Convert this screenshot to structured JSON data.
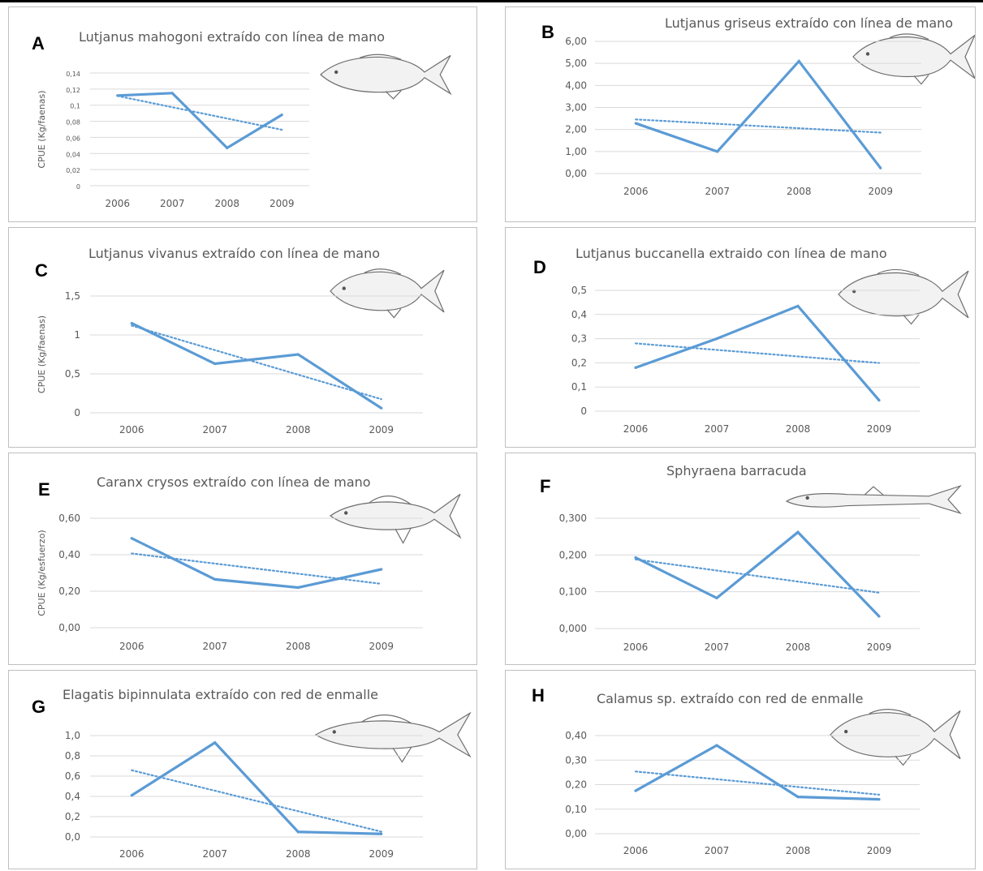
{
  "colors": {
    "series": "#5b9bd5",
    "grid": "#d9d9d9",
    "text": "#595959",
    "border": "#bfbfbf"
  },
  "chart_data": [
    {
      "panel": "A",
      "title": "Lutjanus mahogoni extraído con línea de mano",
      "type": "line",
      "x": [
        "2006",
        "2007",
        "2008",
        "2009"
      ],
      "values": [
        0.112,
        0.115,
        0.047,
        0.088
      ],
      "trendline": "linear",
      "ylabel": "CPUE (Kg/faenas)",
      "ylim": [
        0,
        0.14
      ],
      "yticks": [
        "0",
        "0,02",
        "0,04",
        "0,06",
        "0,08",
        "0,1",
        "0,12",
        "0,14"
      ],
      "fish_icon": "snapper-icon"
    },
    {
      "panel": "B",
      "title": "Lutjanus griseus extraído con línea de mano",
      "type": "line",
      "x": [
        "2006",
        "2007",
        "2008",
        "2009"
      ],
      "values": [
        2.28,
        1.0,
        5.1,
        0.25
      ],
      "trendline": "linear",
      "ylabel": "",
      "ylim": [
        0,
        6
      ],
      "yticks": [
        "0,00",
        "1,00",
        "2,00",
        "3,00",
        "4,00",
        "5,00",
        "6,00"
      ],
      "fish_icon": "snapper-icon"
    },
    {
      "panel": "C",
      "title": "Lutjanus vivanus extraído con línea de mano",
      "type": "line",
      "x": [
        "2006",
        "2007",
        "2008",
        "2009"
      ],
      "values": [
        1.15,
        0.63,
        0.75,
        0.06
      ],
      "trendline": "linear",
      "ylabel": "CPUE (Kg/faenas)",
      "ylim": [
        0,
        1.5
      ],
      "yticks": [
        "0",
        "0,5",
        "1",
        "1,5"
      ],
      "fish_icon": "snapper-icon"
    },
    {
      "panel": "D",
      "title": "Lutjanus buccanella extraido con línea de mano",
      "type": "line",
      "x": [
        "2006",
        "2007",
        "2008",
        "2009"
      ],
      "values": [
        0.18,
        0.3,
        0.435,
        0.045
      ],
      "trendline": "linear",
      "ylabel": "",
      "ylim": [
        0,
        0.5
      ],
      "yticks": [
        "0",
        "0,1",
        "0,2",
        "0,3",
        "0,4",
        "0,5"
      ],
      "fish_icon": "snapper-icon"
    },
    {
      "panel": "E",
      "title": "Caranx crysos extraído con línea de mano",
      "type": "line",
      "x": [
        "2006",
        "2007",
        "2008",
        "2009"
      ],
      "values": [
        0.49,
        0.265,
        0.22,
        0.32
      ],
      "trendline": "linear",
      "ylabel": "CPUE (Kg/esfuerzo)",
      "ylim": [
        0,
        0.6
      ],
      "yticks": [
        "0,00",
        "0,20",
        "0,40",
        "0,60"
      ],
      "fish_icon": "jack-icon"
    },
    {
      "panel": "F",
      "title": "Sphyraena barracuda",
      "type": "line",
      "x": [
        "2006",
        "2007",
        "2008",
        "2009"
      ],
      "values": [
        0.193,
        0.083,
        0.262,
        0.033
      ],
      "trendline": "linear",
      "ylabel": "",
      "ylim": [
        0,
        0.3
      ],
      "yticks": [
        "0,000",
        "0,100",
        "0,200",
        "0,300"
      ],
      "fish_icon": "barracuda-icon"
    },
    {
      "panel": "G",
      "title": "Elagatis bipinnulata extraído con red de enmalle",
      "type": "line",
      "x": [
        "2006",
        "2007",
        "2008",
        "2009"
      ],
      "values": [
        0.41,
        0.93,
        0.05,
        0.03
      ],
      "trendline": "linear",
      "ylabel": "",
      "ylim": [
        0,
        1.0
      ],
      "yticks": [
        "0,0",
        "0,2",
        "0,4",
        "0,6",
        "0,8",
        "1,0"
      ],
      "fish_icon": "runner-icon"
    },
    {
      "panel": "H",
      "title": "Calamus sp. extraído con red de enmalle",
      "type": "line",
      "x": [
        "2006",
        "2007",
        "2008",
        "2009"
      ],
      "values": [
        0.175,
        0.36,
        0.15,
        0.14
      ],
      "trendline": "linear",
      "ylabel": "",
      "ylim": [
        0,
        0.4
      ],
      "yticks": [
        "0,00",
        "0,10",
        "0,20",
        "0,30",
        "0,40"
      ],
      "fish_icon": "porgy-icon"
    }
  ]
}
